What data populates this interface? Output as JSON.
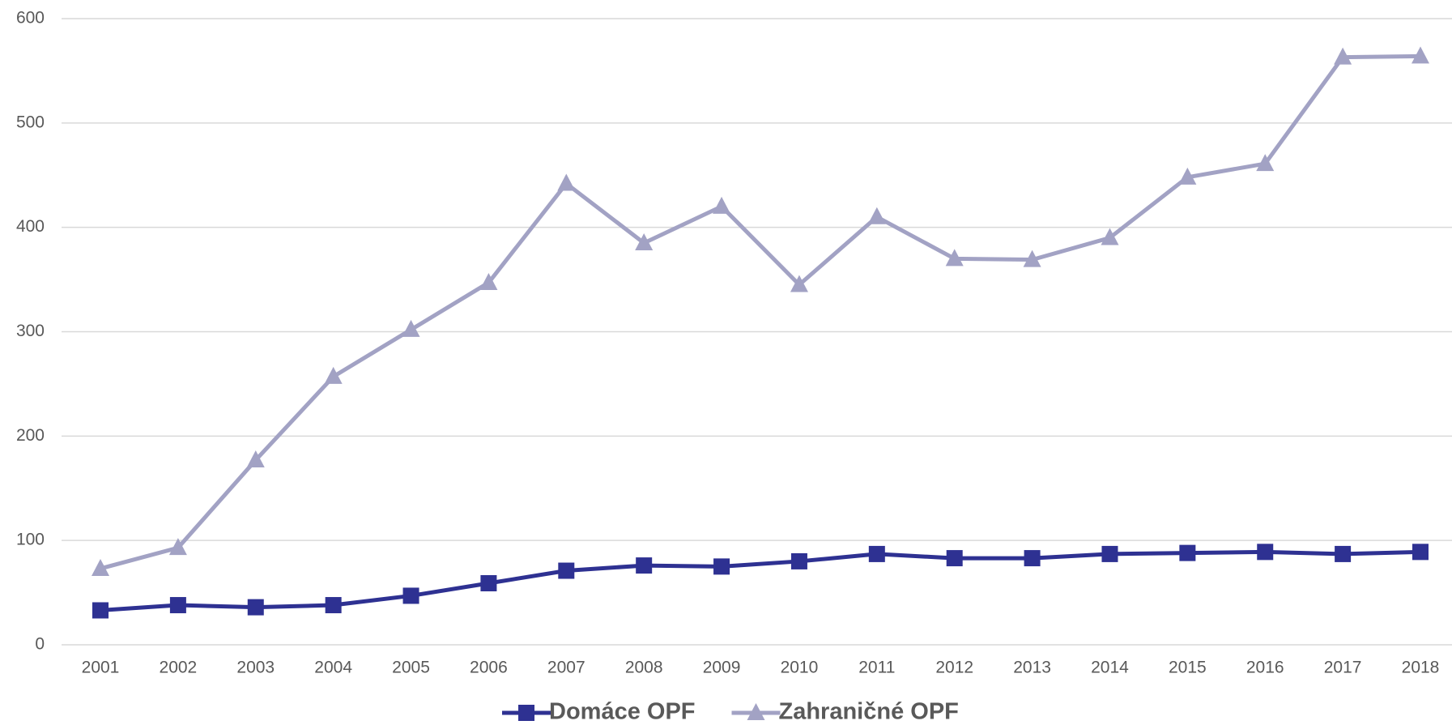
{
  "chart_data": {
    "type": "line",
    "categories": [
      "2001",
      "2002",
      "2003",
      "2004",
      "2005",
      "2006",
      "2007",
      "2008",
      "2009",
      "2010",
      "2011",
      "2012",
      "2013",
      "2014",
      "2015",
      "2016",
      "2017",
      "2018"
    ],
    "series": [
      {
        "name": "Domáce OPF",
        "color": "#2e3192",
        "marker": "square",
        "values": [
          33,
          38,
          36,
          38,
          47,
          59,
          71,
          76,
          75,
          80,
          87,
          83,
          83,
          87,
          88,
          89,
          87,
          89
        ]
      },
      {
        "name": "Zahraničné OPF",
        "color": "#a2a2c4",
        "marker": "triangle",
        "values": [
          73,
          93,
          177,
          257,
          302,
          347,
          442,
          385,
          420,
          345,
          410,
          370,
          369,
          390,
          448,
          461,
          563,
          564
        ]
      }
    ],
    "ylim": [
      0,
      600
    ],
    "yticks": [
      0,
      100,
      200,
      300,
      400,
      500,
      600
    ],
    "grid": true,
    "legend": "bottom"
  }
}
